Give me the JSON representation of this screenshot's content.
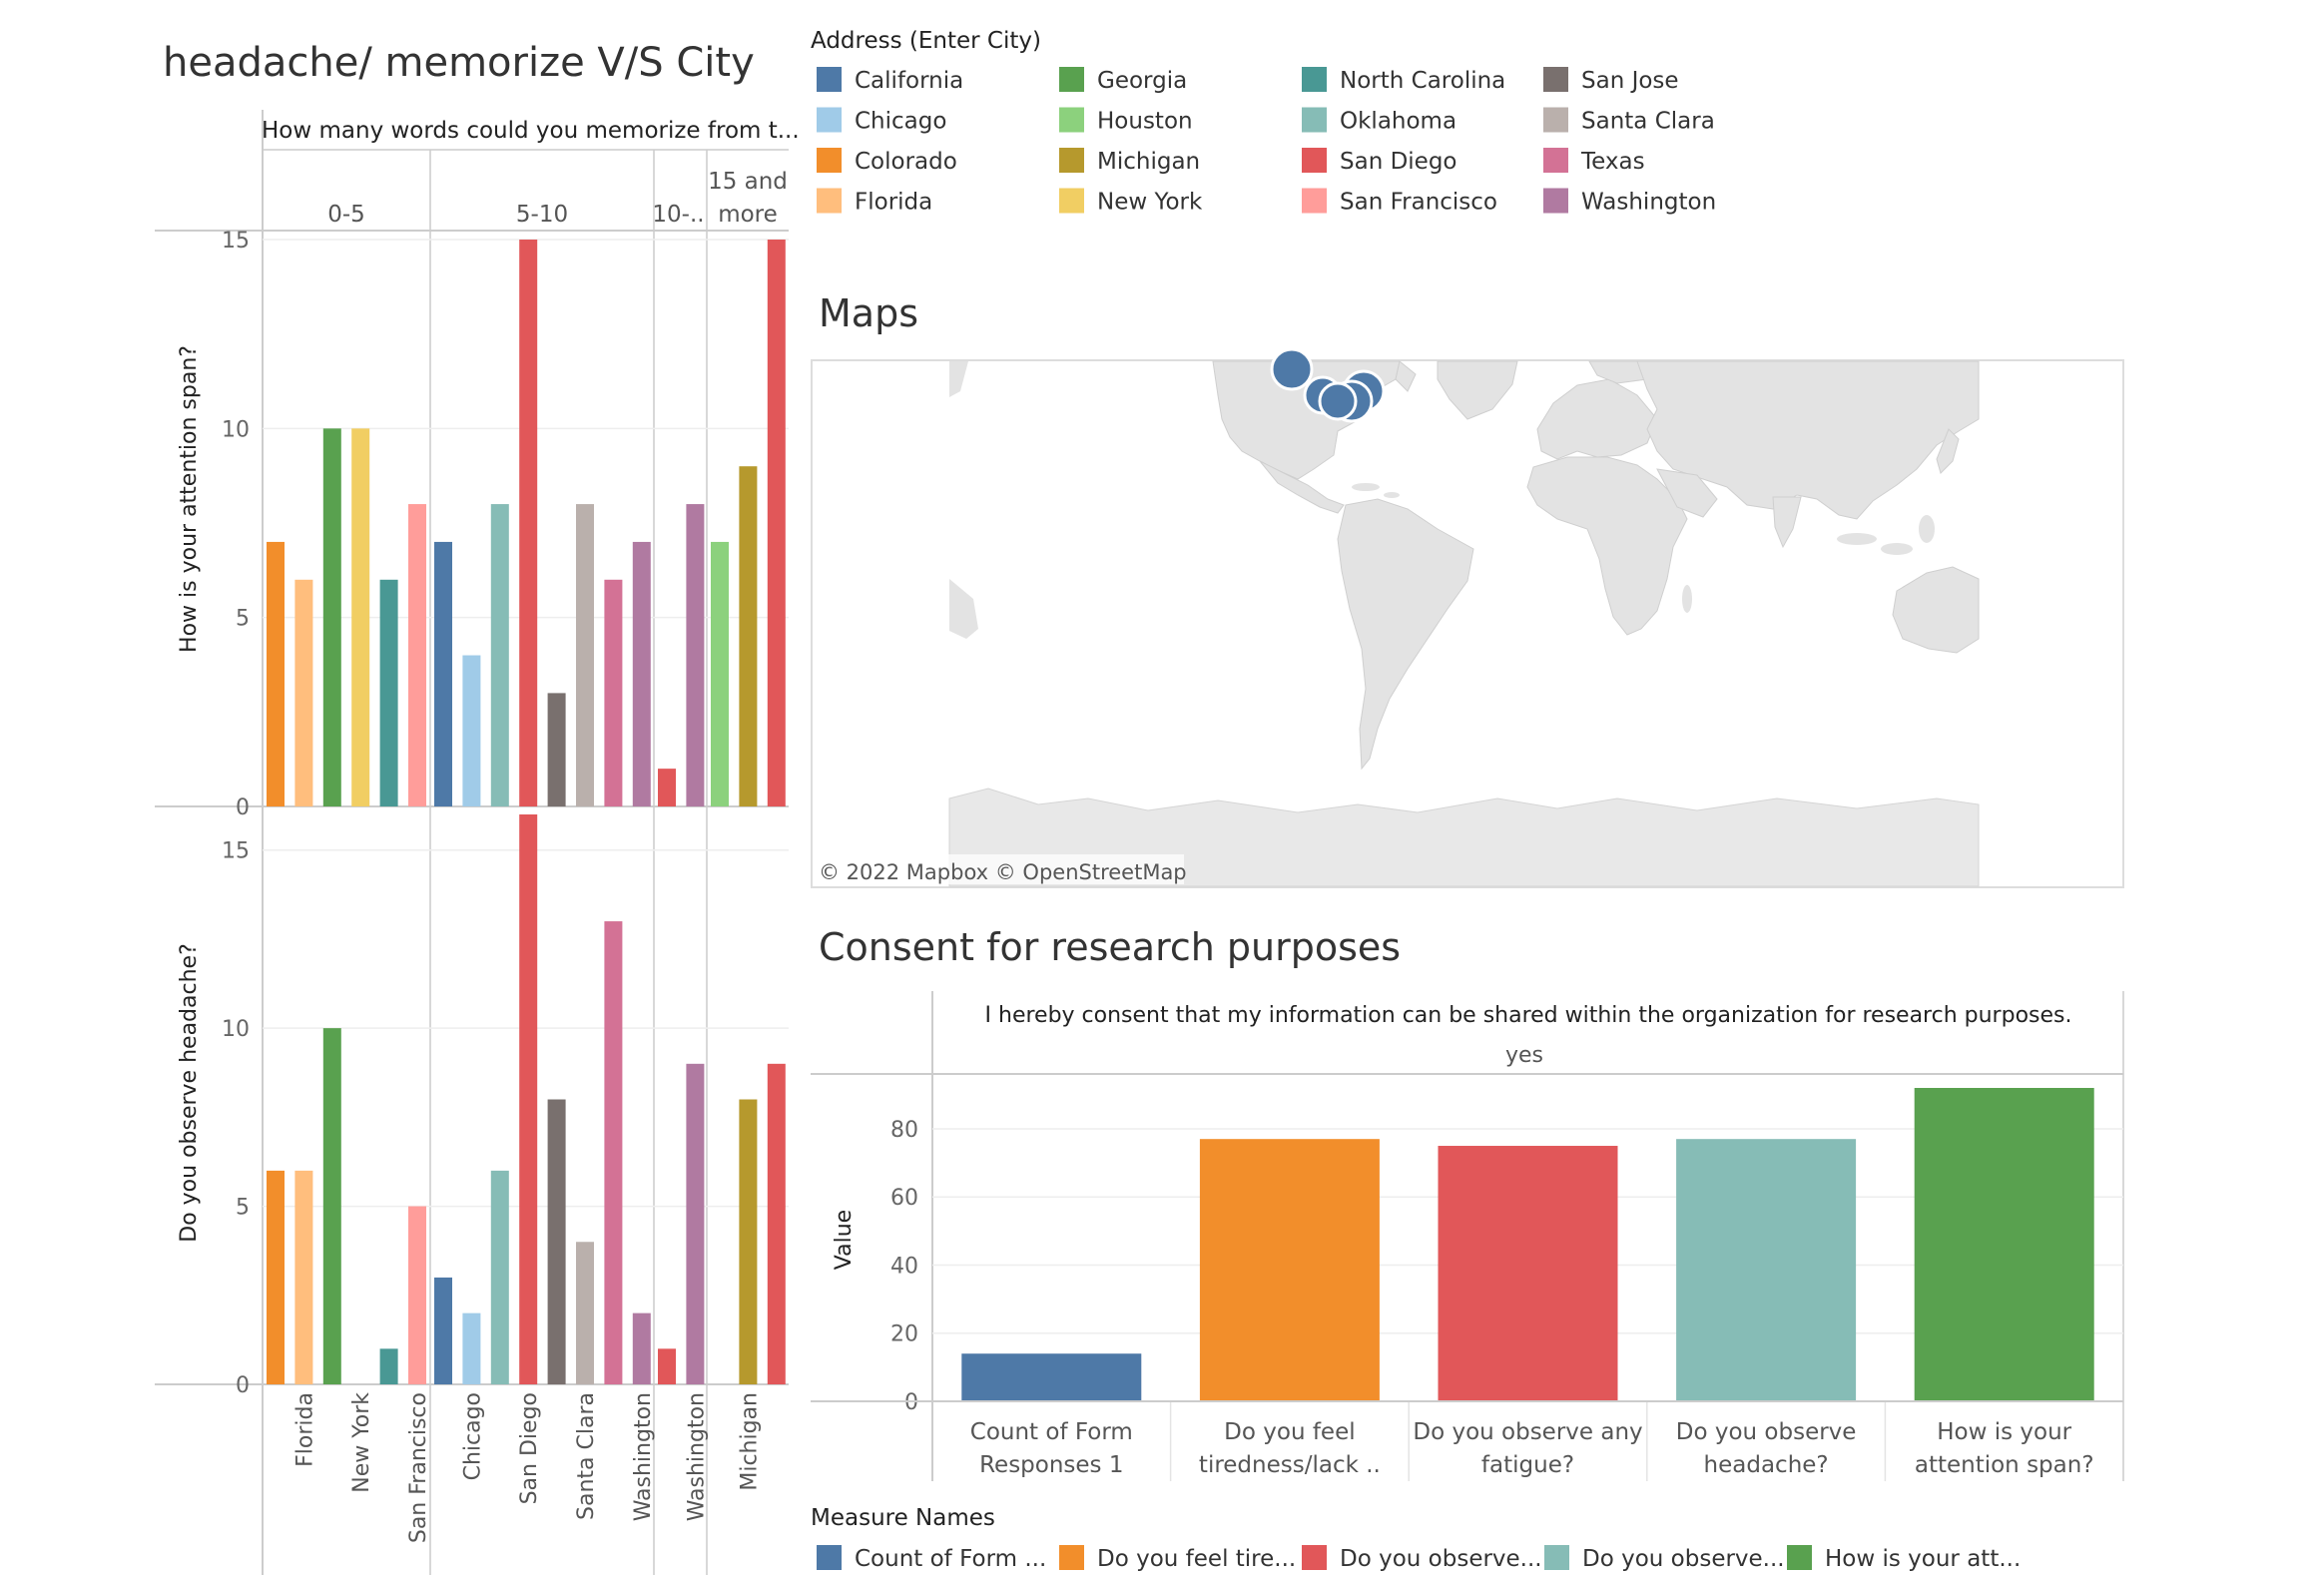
{
  "colors": {
    "California": "#4e79a7",
    "Chicago": "#a0cbe8",
    "Colorado": "#f28e2b",
    "Florida": "#ffbe7d",
    "Georgia": "#59a14f",
    "Houston": "#8cd17d",
    "Michigan": "#b6992d",
    "New York": "#f1ce63",
    "North Carolina": "#499894",
    "Oklahoma": "#86bcb6",
    "San Diego": "#e15759",
    "San Francisco": "#ff9d9a",
    "San Jose": "#79706e",
    "Santa Clara": "#bab0ac",
    "Texas": "#d37295",
    "Washington": "#b07aa1"
  },
  "legend": {
    "title": "Address (Enter City)",
    "items": [
      "California",
      "Chicago",
      "Colorado",
      "Florida",
      "Georgia",
      "Houston",
      "Michigan",
      "New York",
      "North Carolina",
      "Oklahoma",
      "San Diego",
      "San Francisco",
      "San Jose",
      "Santa Clara",
      "Texas",
      "Washington"
    ]
  },
  "left_chart": {
    "title": "headache/ memorize V/S  City",
    "column_header": "How many words could you memorize from t...",
    "groups": [
      {
        "label": "0-5",
        "bars": [
          {
            "city": "Colorado",
            "attention": 7,
            "headache": 6
          },
          {
            "city": "Florida",
            "attention": 6,
            "headache": 6
          },
          {
            "city": "Georgia",
            "attention": 10,
            "headache": 10
          },
          {
            "city": "New York",
            "attention": 10,
            "headache": 0
          },
          {
            "city": "North Carolina",
            "attention": 6,
            "headache": 1
          },
          {
            "city": "San Francisco",
            "attention": 8,
            "headache": 5
          }
        ]
      },
      {
        "label": "5-10",
        "bars": [
          {
            "city": "California",
            "attention": 7,
            "headache": 3
          },
          {
            "city": "Chicago",
            "attention": 4,
            "headache": 2
          },
          {
            "city": "Oklahoma",
            "attention": 8,
            "headache": 6
          },
          {
            "city": "San Diego",
            "attention": 15,
            "headache": 16
          },
          {
            "city": "San Jose",
            "attention": 3,
            "headache": 8
          },
          {
            "city": "Santa Clara",
            "attention": 8,
            "headache": 4
          },
          {
            "city": "Texas",
            "attention": 6,
            "headache": 13
          },
          {
            "city": "Washington",
            "attention": 7,
            "headache": 2
          }
        ]
      },
      {
        "label": "10-..",
        "bars": [
          {
            "city": "San Diego",
            "attention": 1,
            "headache": 1
          },
          {
            "city": "Washington",
            "attention": 8,
            "headache": 9
          }
        ]
      },
      {
        "label": "15 and more",
        "label_lines": [
          "15 and",
          "more"
        ],
        "bars": [
          {
            "city": "Houston",
            "attention": 7,
            "headache": 0
          },
          {
            "city": "Michigan",
            "attention": 9,
            "headache": 8
          },
          {
            "city": "San Diego",
            "attention": 15,
            "headache": 9
          }
        ]
      }
    ],
    "x_labels": [
      {
        "text": "Florida",
        "group": 0,
        "bar": 1
      },
      {
        "text": "New York",
        "group": 0,
        "bar": 3
      },
      {
        "text": "San Francisco",
        "group": 0,
        "bar": 5
      },
      {
        "text": "Chicago",
        "group": 1,
        "bar": 1
      },
      {
        "text": "San Diego",
        "group": 1,
        "bar": 3
      },
      {
        "text": "Santa Clara",
        "group": 1,
        "bar": 5
      },
      {
        "text": "Washington",
        "group": 1,
        "bar": 7
      },
      {
        "text": "Washington",
        "group": 2,
        "bar": 1
      },
      {
        "text": "Michigan",
        "group": 3,
        "bar": 1
      }
    ],
    "top_panel": {
      "ylabel": "How is your attention span?",
      "ylim": [
        0,
        15
      ],
      "ticks": [
        "0",
        "5",
        "10",
        "15"
      ]
    },
    "bottom_panel": {
      "ylabel": "Do you observe headache?",
      "ylim": [
        0,
        16
      ],
      "ticks": [
        "0",
        "5",
        "10",
        "15"
      ]
    }
  },
  "map": {
    "title": "Maps",
    "attribution": "© 2022 Mapbox  © OpenStreetMap",
    "markers_color": "#4e79a7"
  },
  "chart_data": {
    "type": "bar",
    "title": "Consent for research purposes",
    "column_header": "I hereby consent that my information can be shared within the organization for research purposes.",
    "column_value": "yes",
    "ylabel": "Value",
    "ylim": [
      0,
      92
    ],
    "yticks": [
      "0",
      "20",
      "40",
      "60",
      "80"
    ],
    "categories": [
      {
        "lines": [
          "Count of Form",
          "Responses 1"
        ]
      },
      {
        "lines": [
          "Do you feel",
          "tiredness/lack .."
        ]
      },
      {
        "lines": [
          "Do you observe any",
          "fatigue?"
        ]
      },
      {
        "lines": [
          "Do you observe",
          "headache?"
        ]
      },
      {
        "lines": [
          "How is your",
          "attention span?"
        ]
      }
    ],
    "values": [
      14,
      77,
      75,
      77,
      92
    ],
    "colors": [
      "#4e79a7",
      "#f28e2b",
      "#e15759",
      "#86bcb6",
      "#59a14f"
    ]
  },
  "measure_legend": {
    "title": "Measure Names",
    "items": [
      {
        "label": "Count of Form ...",
        "color": "#4e79a7"
      },
      {
        "label": "Do you feel tire...",
        "color": "#f28e2b"
      },
      {
        "label": "Do you observe...",
        "color": "#e15759"
      },
      {
        "label": "Do you observe...",
        "color": "#86bcb6"
      },
      {
        "label": "How is your att...",
        "color": "#59a14f"
      }
    ]
  }
}
